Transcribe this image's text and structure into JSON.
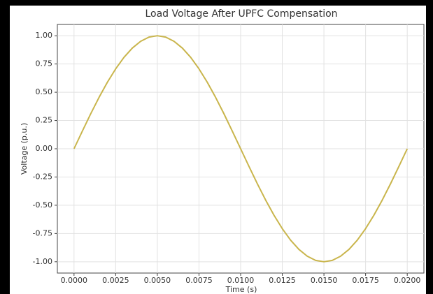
{
  "chart_data": {
    "type": "line",
    "title": "Load Voltage After UPFC Compensation",
    "xlabel": "Time (s)",
    "ylabel": "Voltage (p.u.)",
    "x": [
      0,
      0.0005,
      0.001,
      0.0015,
      0.002,
      0.0025,
      0.003,
      0.0035,
      0.004,
      0.0045,
      0.005,
      0.0055,
      0.006,
      0.0065,
      0.007,
      0.0075,
      0.008,
      0.0085,
      0.009,
      0.0095,
      0.01,
      0.0105,
      0.011,
      0.0115,
      0.012,
      0.0125,
      0.013,
      0.0135,
      0.014,
      0.0145,
      0.015,
      0.0155,
      0.016,
      0.0165,
      0.017,
      0.0175,
      0.018,
      0.0185,
      0.019,
      0.0195,
      0.02
    ],
    "series": [
      {
        "color": "#c9b54c",
        "values": [
          0,
          0.156,
          0.309,
          0.454,
          0.588,
          0.707,
          0.809,
          0.891,
          0.951,
          0.988,
          1,
          0.988,
          0.951,
          0.891,
          0.809,
          0.707,
          0.588,
          0.454,
          0.309,
          0.156,
          0,
          -0.156,
          -0.309,
          -0.454,
          -0.588,
          -0.707,
          -0.809,
          -0.891,
          -0.951,
          -0.988,
          -1,
          -0.988,
          -0.951,
          -0.891,
          -0.809,
          -0.707,
          -0.588,
          -0.454,
          -0.309,
          -0.156,
          0
        ]
      }
    ],
    "xlim": [
      -0.001,
      0.021
    ],
    "ylim": [
      -1.1,
      1.1
    ],
    "xticks": [
      {
        "value": 0,
        "label": "0.0000"
      },
      {
        "value": 0.0025,
        "label": "0.0025"
      },
      {
        "value": 0.005,
        "label": "0.0050"
      },
      {
        "value": 0.0075,
        "label": "0.0075"
      },
      {
        "value": 0.01,
        "label": "0.0100"
      },
      {
        "value": 0.0125,
        "label": "0.0125"
      },
      {
        "value": 0.015,
        "label": "0.0150"
      },
      {
        "value": 0.0175,
        "label": "0.0175"
      },
      {
        "value": 0.02,
        "label": "0.0200"
      }
    ],
    "yticks": [
      {
        "value": 1,
        "label": "1.00"
      },
      {
        "value": 0.75,
        "label": "0.75"
      },
      {
        "value": 0.5,
        "label": "0.50"
      },
      {
        "value": 0.25,
        "label": "0.25"
      },
      {
        "value": 0,
        "label": "0.00"
      },
      {
        "value": -0.25,
        "label": "-0.25"
      },
      {
        "value": -0.5,
        "label": "-0.50"
      },
      {
        "value": -0.75,
        "label": "-0.75"
      },
      {
        "value": -1,
        "label": "-1.00"
      }
    ],
    "grid": true
  }
}
